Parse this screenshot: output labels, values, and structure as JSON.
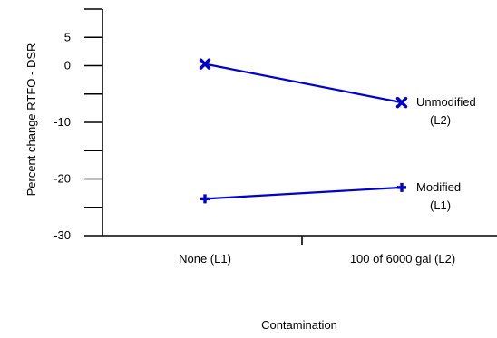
{
  "chart_data": {
    "type": "line",
    "title": "",
    "xlabel": "Contamination",
    "ylabel": "Percent change RTFO - DSR",
    "categories": [
      "None (L1)",
      "100 of 6000 gal (L2)"
    ],
    "ylim": [
      -30,
      10
    ],
    "y_tick_labels": [
      {
        "value": 5,
        "label": "5"
      },
      {
        "value": 0,
        "label": "0"
      },
      {
        "value": -10,
        "label": "-10"
      },
      {
        "value": -20,
        "label": "-20"
      },
      {
        "value": -30,
        "label": "-30"
      }
    ],
    "y_minor_ticks": [
      10,
      5,
      0,
      -5,
      -10,
      -15,
      -20,
      -25,
      -30
    ],
    "grid": false,
    "series": [
      {
        "name_lines": [
          "Unmodified",
          "(L2)"
        ],
        "values": [
          0.3,
          -6.5
        ],
        "marker": "x",
        "color": "#0000cc"
      },
      {
        "name_lines": [
          "Modified",
          "(L1)"
        ],
        "values": [
          -23.5,
          -21.5
        ],
        "marker": "plus",
        "color": "#0000cc"
      }
    ]
  }
}
